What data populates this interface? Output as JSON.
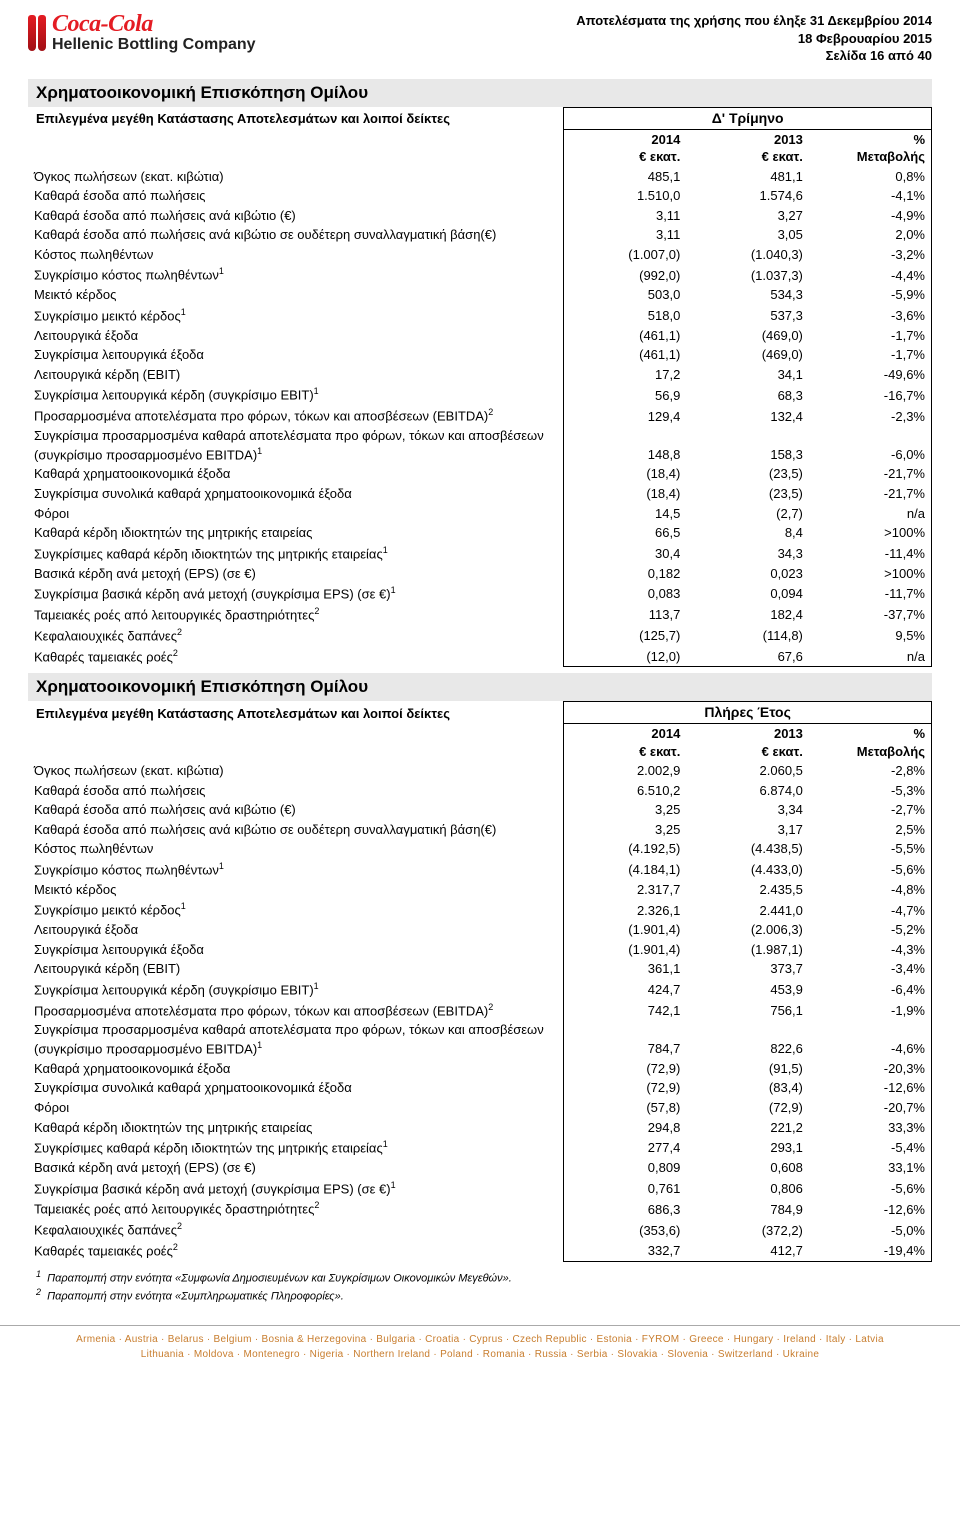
{
  "brand": {
    "coca": "Coca-Cola",
    "hbc": "Hellenic Bottling Company"
  },
  "header": {
    "line1": "Αποτελέσματα της χρήσης που έληξε 31 Δεκεμβρίου 2014",
    "line2": "18 Φεβρουαρίου 2015",
    "line3": "Σελίδα 16 από 40"
  },
  "sectionTitle": "Χρηματοοικονομική Επισκόπηση Ομίλου",
  "subTitle": "Επιλεγμένα μεγέθη Κατάστασης Αποτελεσμάτων και λοιποί δείκτες",
  "periods": {
    "q4": "Δ' Τρίμηνο",
    "fy": "Πλήρες Έτος"
  },
  "cols": {
    "y2014": "2014",
    "y2013": "2013",
    "pct": "%",
    "unit": "€ εκατ.",
    "change": "Μεταβολής"
  },
  "rowsQ4": [
    {
      "l": "Όγκος πωλήσεων (εκατ. κιβώτια)",
      "a": "485,1",
      "b": "481,1",
      "c": "0,8%"
    },
    {
      "l": "Καθαρά έσοδα από πωλήσεις",
      "a": "1.510,0",
      "b": "1.574,6",
      "c": "-4,1%"
    },
    {
      "l": "Καθαρά έσοδα από πωλήσεις ανά κιβώτιο (€)",
      "a": "3,11",
      "b": "3,27",
      "c": "-4,9%"
    },
    {
      "l": "Καθαρά έσοδα από πωλήσεις ανά κιβώτιο σε ουδέτερη συναλλαγματική βάση(€)",
      "a": "3,11",
      "b": "3,05",
      "c": "2,0%"
    },
    {
      "l": "Κόστος πωληθέντων",
      "a": "(1.007,0)",
      "b": "(1.040,3)",
      "c": "-3,2%"
    },
    {
      "l": "Συγκρίσιμο κόστος πωληθέντων",
      "sup": "1",
      "a": "(992,0)",
      "b": "(1.037,3)",
      "c": "-4,4%"
    },
    {
      "l": "Μεικτό κέρδος",
      "a": "503,0",
      "b": "534,3",
      "c": "-5,9%"
    },
    {
      "l": "Συγκρίσιμο μεικτό κέρδος",
      "sup": "1",
      "a": "518,0",
      "b": "537,3",
      "c": "-3,6%"
    },
    {
      "l": "Λειτουργικά έξοδα",
      "a": "(461,1)",
      "b": "(469,0)",
      "c": "-1,7%"
    },
    {
      "l": "Συγκρίσιμα λειτουργικά έξοδα",
      "a": "(461,1)",
      "b": "(469,0)",
      "c": "-1,7%"
    },
    {
      "l": "Λειτουργικά κέρδη (EBIT)",
      "a": "17,2",
      "b": "34,1",
      "c": "-49,6%"
    },
    {
      "l": "Συγκρίσιμα λειτουργικά κέρδη (συγκρίσιμο EBIT)",
      "sup": "1",
      "a": "56,9",
      "b": "68,3",
      "c": "-16,7%"
    },
    {
      "l": "Προσαρμοσμένα αποτελέσματα προ φόρων, τόκων και αποσβέσεων (EBITDA)",
      "sup": "2",
      "a": "129,4",
      "b": "132,4",
      "c": "-2,3%"
    },
    {
      "l": "Συγκρίσιμα προσαρμοσμένα καθαρά αποτελέσματα προ φόρων, τόκων και αποσβέσεων (συγκρίσιμο προσαρμοσμένο EBITDA)",
      "sup": "1",
      "a": "148,8",
      "b": "158,3",
      "c": "-6,0%"
    },
    {
      "l": "Καθαρά χρηματοοικονομικά έξοδα",
      "a": "(18,4)",
      "b": "(23,5)",
      "c": "-21,7%"
    },
    {
      "l": "Συγκρίσιμα συνολικά καθαρά χρηματοοικονομικά έξοδα",
      "a": "(18,4)",
      "b": "(23,5)",
      "c": "-21,7%"
    },
    {
      "l": "Φόροι",
      "a": "14,5",
      "b": "(2,7)",
      "c": "n/a"
    },
    {
      "l": "Καθαρά κέρδη ιδιοκτητών της μητρικής εταιρείας",
      "a": "66,5",
      "b": "8,4",
      "c": ">100%"
    },
    {
      "l": "Συγκρίσιμες καθαρά κέρδη ιδιοκτητών της μητρικής εταιρείας",
      "sup": "1",
      "a": "30,4",
      "b": "34,3",
      "c": "-11,4%"
    },
    {
      "l": "Βασικά κέρδη ανά μετοχή (EPS) (σε €)",
      "a": "0,182",
      "b": "0,023",
      "c": ">100%"
    },
    {
      "l": "Συγκρίσιμα βασικά κέρδη ανά μετοχή (συγκρίσιμα EPS) (σε €)",
      "sup": "1",
      "a": "0,083",
      "b": "0,094",
      "c": "-11,7%"
    },
    {
      "l": "Ταμειακές ροές από λειτουργικές δραστηριότητες",
      "sup": "2",
      "a": "113,7",
      "b": "182,4",
      "c": "-37,7%"
    },
    {
      "l": "Κεφαλαιουχικές δαπάνες",
      "sup": "2",
      "a": "(125,7)",
      "b": "(114,8)",
      "c": "9,5%"
    },
    {
      "l": "Καθαρές ταμειακές ροές",
      "sup": "2",
      "a": "(12,0)",
      "b": "67,6",
      "c": "n/a"
    }
  ],
  "rowsFY": [
    {
      "l": "Όγκος πωλήσεων (εκατ. κιβώτια)",
      "a": "2.002,9",
      "b": "2.060,5",
      "c": "-2,8%"
    },
    {
      "l": "Καθαρά έσοδα από πωλήσεις",
      "a": "6.510,2",
      "b": "6.874,0",
      "c": "-5,3%"
    },
    {
      "l": "Καθαρά έσοδα από πωλήσεις ανά κιβώτιο (€)",
      "a": "3,25",
      "b": "3,34",
      "c": "-2,7%"
    },
    {
      "l": "Καθαρά έσοδα από πωλήσεις ανά κιβώτιο σε ουδέτερη συναλλαγματική βάση(€)",
      "a": "3,25",
      "b": "3,17",
      "c": "2,5%"
    },
    {
      "l": "Κόστος πωληθέντων",
      "a": "(4.192,5)",
      "b": "(4.438,5)",
      "c": "-5,5%"
    },
    {
      "l": "Συγκρίσιμο κόστος πωληθέντων",
      "sup": "1",
      "a": "(4.184,1)",
      "b": "(4.433,0)",
      "c": "-5,6%"
    },
    {
      "l": "Μεικτό κέρδος",
      "a": "2.317,7",
      "b": "2.435,5",
      "c": "-4,8%"
    },
    {
      "l": "Συγκρίσιμο μεικτό κέρδος",
      "sup": "1",
      "a": "2.326,1",
      "b": "2.441,0",
      "c": "-4,7%"
    },
    {
      "l": "Λειτουργικά έξοδα",
      "a": "(1.901,4)",
      "b": "(2.006,3)",
      "c": "-5,2%"
    },
    {
      "l": "Συγκρίσιμα λειτουργικά έξοδα",
      "a": "(1.901,4)",
      "b": "(1.987,1)",
      "c": "-4,3%"
    },
    {
      "l": "Λειτουργικά κέρδη (EBIT)",
      "a": "361,1",
      "b": "373,7",
      "c": "-3,4%"
    },
    {
      "l": "Συγκρίσιμα λειτουργικά κέρδη (συγκρίσιμο EBIT)",
      "sup": "1",
      "a": "424,7",
      "b": "453,9",
      "c": "-6,4%"
    },
    {
      "l": "Προσαρμοσμένα αποτελέσματα προ φόρων, τόκων και αποσβέσεων (EBITDA)",
      "sup": "2",
      "a": "742,1",
      "b": "756,1",
      "c": "-1,9%"
    },
    {
      "l": "Συγκρίσιμα προσαρμοσμένα καθαρά αποτελέσματα προ φόρων, τόκων και αποσβέσεων (συγκρίσιμο προσαρμοσμένο EBITDA)",
      "sup": "1",
      "a": "784,7",
      "b": "822,6",
      "c": "-4,6%"
    },
    {
      "l": "Καθαρά χρηματοοικονομικά έξοδα",
      "a": "(72,9)",
      "b": "(91,5)",
      "c": "-20,3%"
    },
    {
      "l": "Συγκρίσιμα συνολικά καθαρά χρηματοοικονομικά έξοδα",
      "a": "(72,9)",
      "b": "(83,4)",
      "c": "-12,6%"
    },
    {
      "l": "Φόροι",
      "a": "(57,8)",
      "b": "(72,9)",
      "c": "-20,7%"
    },
    {
      "l": "Καθαρά κέρδη ιδιοκτητών της μητρικής εταιρείας",
      "a": "294,8",
      "b": "221,2",
      "c": "33,3%"
    },
    {
      "l": "Συγκρίσιμες καθαρά κέρδη ιδιοκτητών της μητρικής εταιρείας",
      "sup": "1",
      "a": "277,4",
      "b": "293,1",
      "c": "-5,4%"
    },
    {
      "l": "Βασικά κέρδη ανά μετοχή (EPS) (σε €)",
      "a": "0,809",
      "b": "0,608",
      "c": "33,1%"
    },
    {
      "l": "Συγκρίσιμα βασικά κέρδη ανά μετοχή (συγκρίσιμα EPS) (σε €)",
      "sup": "1",
      "a": "0,761",
      "b": "0,806",
      "c": "-5,6%"
    },
    {
      "l": "Ταμειακές ροές από λειτουργικές δραστηριότητες",
      "sup": "2",
      "a": "686,3",
      "b": "784,9",
      "c": "-12,6%"
    },
    {
      "l": "Κεφαλαιουχικές δαπάνες",
      "sup": "2",
      "a": "(353,6)",
      "b": "(372,2)",
      "c": "-5,0%"
    },
    {
      "l": "Καθαρές ταμειακές ροές",
      "sup": "2",
      "a": "332,7",
      "b": "412,7",
      "c": "-19,4%"
    }
  ],
  "footnotes": {
    "f1": "Παραπομπή στην ενότητα «Συμφωνία Δημοσιευμένων και Συγκρίσιμων Οικονομικών Μεγεθών».",
    "f2": "Παραπομπή στην ενότητα «Συμπληρωματικές Πληροφορίες»."
  },
  "countries": {
    "line1": "Armenia · Austria · Belarus · Belgium · Bosnia & Herzegovina · Bulgaria · Croatia · Cyprus · Czech Republic · Estonia · FYROM · Greece · Hungary · Ireland · Italy · Latvia",
    "line2": "Lithuania · Moldova · Montenegro · Nigeria · Northern Ireland · Poland · Romania · Russia · Serbia · Slovakia · Slovenia · Switzerland · Ukraine"
  }
}
